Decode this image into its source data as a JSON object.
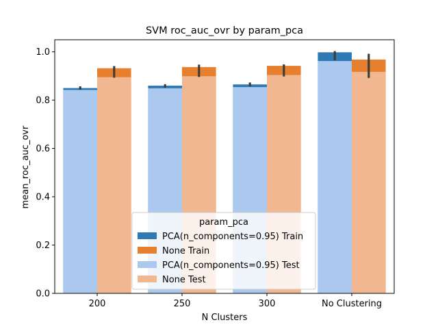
{
  "chart_data": {
    "type": "bar",
    "title": "SVM roc_auc_ovr by param_pca",
    "xlabel": "N Clusters",
    "ylabel": "mean_roc_auc_ovr",
    "categories": [
      "200",
      "250",
      "300",
      "No Clustering"
    ],
    "ylim": [
      0,
      1.05
    ],
    "yticks": [
      0.0,
      0.2,
      0.4,
      0.6,
      0.8,
      1.0
    ],
    "ytick_labels": [
      "0.0",
      "0.2",
      "0.4",
      "0.6",
      "0.8",
      "1.0"
    ],
    "grid": false,
    "legend": {
      "title": "param_pca",
      "placement": "lower center",
      "entries": [
        {
          "label": "PCA(n_components=0.95) Train",
          "color": "#2f79b4"
        },
        {
          "label": "None Train",
          "color": "#e6802e"
        },
        {
          "label": "PCA(n_components=0.95) Test",
          "color": "#abc9ee"
        },
        {
          "label": "None Test",
          "color": "#f1b791"
        }
      ]
    },
    "groups": [
      {
        "name": "PCA(n_components=0.95)",
        "train": [
          0.85,
          0.86,
          0.865,
          0.998
        ],
        "train_err_low": [
          0.843,
          0.852,
          0.857,
          0.965
        ],
        "train_err_high": [
          0.857,
          0.866,
          0.873,
          1.003
        ],
        "test": [
          0.842,
          0.849,
          0.854,
          0.962
        ],
        "train_color": "#2f79b4",
        "test_color": "#abc9ee"
      },
      {
        "name": "None",
        "train": [
          0.932,
          0.937,
          0.942,
          0.968
        ],
        "train_err_low": [
          0.893,
          0.896,
          0.898,
          0.892
        ],
        "train_err_high": [
          0.941,
          0.947,
          0.948,
          0.992
        ],
        "test": [
          0.895,
          0.899,
          0.904,
          0.917
        ],
        "train_color": "#e6802e",
        "test_color": "#f1b791"
      }
    ]
  }
}
